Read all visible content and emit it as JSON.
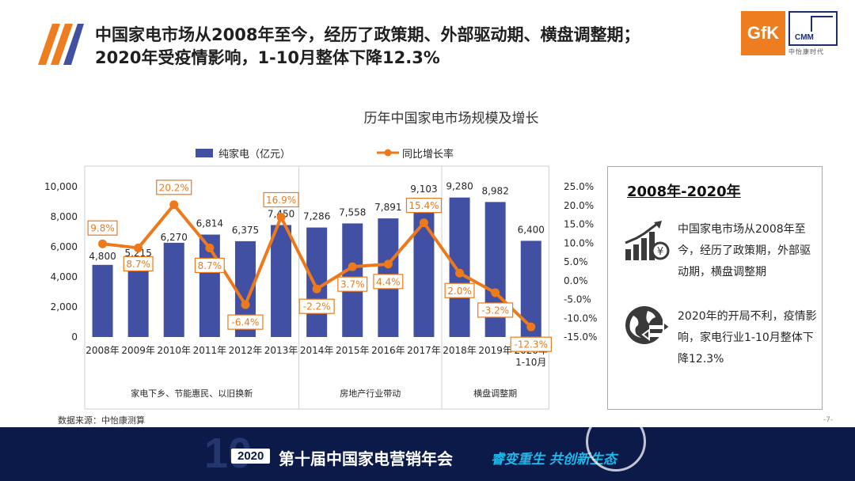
{
  "header": {
    "title_line1": "中国家电市场从2008年至今，经历了政策期、外部驱动期、横盘调整期；",
    "title_line2": "2020年受疫情影响，1-10月整体下降12.3%",
    "logo_gfk": "GfK",
    "logo_cmm": "CMM",
    "logo_cmm_sub": "中怡康时代"
  },
  "chart_data": {
    "type": "bar",
    "title": "历年中国家电市场规模及增长",
    "categories": [
      "2008年",
      "2009年",
      "2010年",
      "2011年",
      "2012年",
      "2013年",
      "2014年",
      "2015年",
      "2016年",
      "2017年",
      "2018年",
      "2019年",
      "2020年"
    ],
    "category_sublabel_last": "1-10月",
    "series": [
      {
        "name": "纯家电（亿元）",
        "type": "bar",
        "axis": "left",
        "values": [
          4800,
          5215,
          6270,
          6814,
          6375,
          7450,
          7286,
          7558,
          7891,
          9103,
          9280,
          8982,
          6400
        ],
        "labels": [
          "4,800",
          "5,215",
          "6,270",
          "6,814",
          "6,375",
          "7,450",
          "7,286",
          "7,558",
          "7,891",
          "9,103",
          "9,280",
          "8,982",
          "6,400"
        ],
        "color": "#4250a3"
      },
      {
        "name": "同比增长率",
        "type": "line",
        "axis": "right",
        "values": [
          9.8,
          8.7,
          20.2,
          8.7,
          -6.4,
          16.9,
          -2.2,
          3.7,
          4.4,
          15.4,
          2.0,
          -3.2,
          -12.3
        ],
        "labels": [
          "9.8%",
          "8.7%",
          "20.2%",
          "8.7%",
          "-6.4%",
          "16.9%",
          "-2.2%",
          "3.7%",
          "4.4%",
          "15.4%",
          "2.0%",
          "-3.2%",
          "-12.3%"
        ],
        "color": "#ec7a1c"
      }
    ],
    "ylim_left": [
      0,
      10000
    ],
    "ylim_right": [
      -15,
      25
    ],
    "yticks_left": [
      "0",
      "2,000",
      "4,000",
      "6,000",
      "8,000",
      "10,000"
    ],
    "yticks_right": [
      "-15.0%",
      "-10.0%",
      "-5.0%",
      "0.0%",
      "5.0%",
      "10.0%",
      "15.0%",
      "20.0%",
      "25.0%"
    ],
    "legend_position": "top",
    "grid": false,
    "periods": [
      {
        "label": "家电下乡、节能惠民、以旧换新",
        "start": 0,
        "end": 5
      },
      {
        "label": "房地产行业带动",
        "start": 6,
        "end": 9
      },
      {
        "label": "横盘调整期",
        "start": 10,
        "end": 12
      }
    ]
  },
  "info_box": {
    "heading": "2008年-2020年",
    "point1": "中国家电市场从2008年至今，经历了政策期，外部驱动期，横盘调整期",
    "point2": "2020年的开局不利，疫情影响，家电行业1-10月整体下降12.3%",
    "icon1": "growth-chart-icon",
    "icon2": "globe-transfer-icon"
  },
  "footer": {
    "source": "数据来源：中怡康测算",
    "page_number": "-7-"
  },
  "banner": {
    "ten": "10",
    "year": "2020",
    "text": "第十届中国家电营销年会",
    "slogan": "睿变重生  共创新生态"
  }
}
